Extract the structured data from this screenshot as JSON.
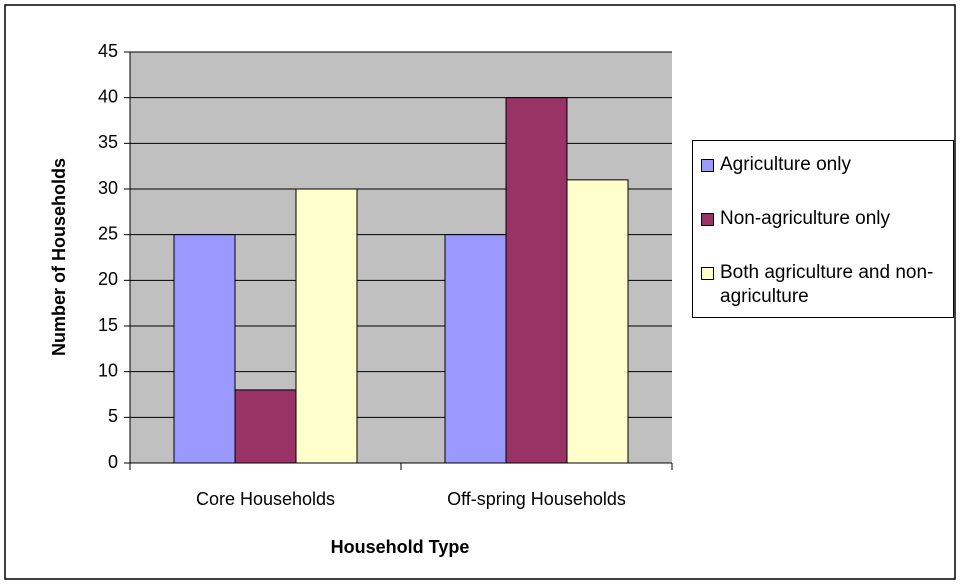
{
  "chart_data": {
    "type": "bar",
    "x_label": "Household Type",
    "y_label": "Number of Households",
    "categories": [
      "Core Households",
      "Off-spring Households"
    ],
    "series": [
      {
        "name": "Agriculture only",
        "color": "#9999ff",
        "values": [
          25,
          25
        ]
      },
      {
        "name": "Non-agriculture only",
        "color": "#993366",
        "values": [
          8,
          40
        ]
      },
      {
        "name": "Both agriculture and non-agriculture",
        "color": "#ffffcc",
        "values": [
          30,
          31
        ]
      }
    ],
    "ylim": [
      0,
      45
    ],
    "yticks": [
      0,
      5,
      10,
      15,
      20,
      25,
      30,
      35,
      40,
      45
    ],
    "grid": true,
    "plot_background": "#c0c0c0",
    "legend": "right"
  }
}
